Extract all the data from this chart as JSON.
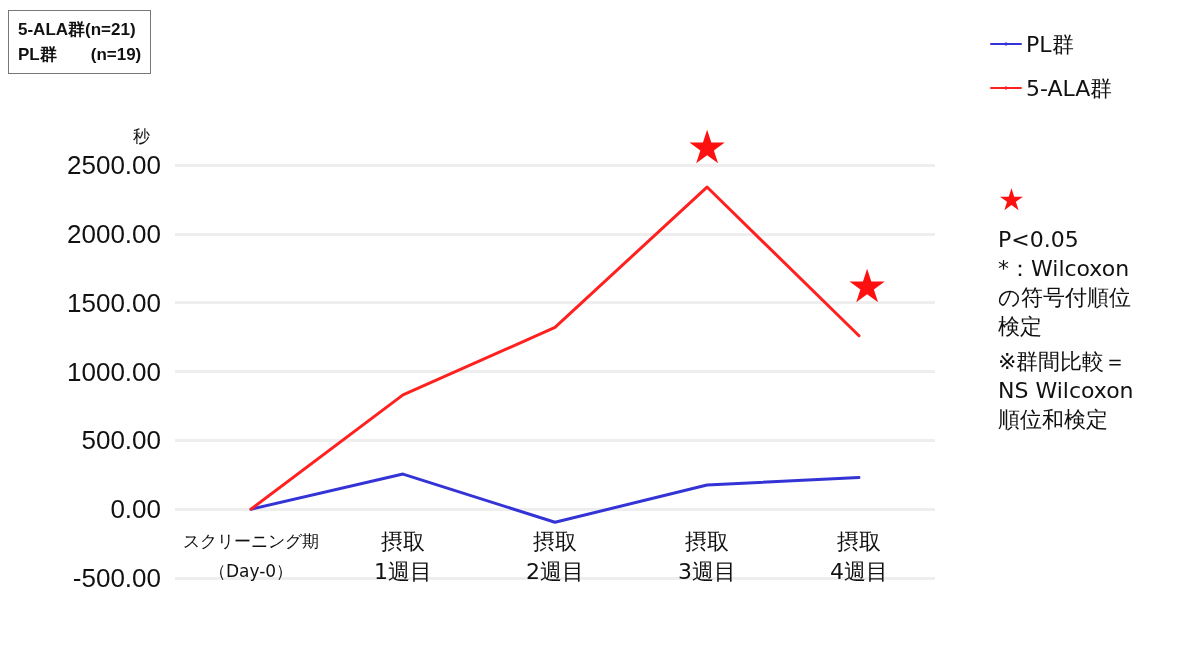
{
  "chart_data": {
    "type": "line",
    "ylabel": "秒",
    "categories": [
      "スクリーニング期（Day-0）",
      "摂取\n1週目",
      "摂取\n2週目",
      "摂取\n3週目",
      "摂取\n4週目"
    ],
    "series": [
      {
        "name": "PL群",
        "color": "#3333d6",
        "values": [
          0,
          255,
          -95,
          175,
          230
        ]
      },
      {
        "name": "5-ALA群",
        "color": "#ff2020",
        "values": [
          0,
          830,
          1320,
          2340,
          1260
        ]
      }
    ],
    "ylim": [
      -500,
      2500
    ],
    "yticks": [
      {
        "value": -500,
        "label": "-500.00"
      },
      {
        "value": 0,
        "label": "0.00"
      },
      {
        "value": 500,
        "label": "500.00"
      },
      {
        "value": 1000,
        "label": "1000.00"
      },
      {
        "value": 1500,
        "label": "1500.00"
      },
      {
        "value": 2000,
        "label": "2000.00"
      },
      {
        "value": 2500,
        "label": "2500.00"
      }
    ],
    "grid": "y",
    "legend": "top right",
    "marker": "none",
    "line_style": "solid",
    "annotations": [
      "5-ALA群(n=21)\nPL群　　(n=19)",
      "★",
      "★",
      "★\nP<0.05\n*：Wilcoxon\nの符号付順位検定",
      "※群間比較＝\nNS Wilcoxon\n順位和検定"
    ]
  }
}
